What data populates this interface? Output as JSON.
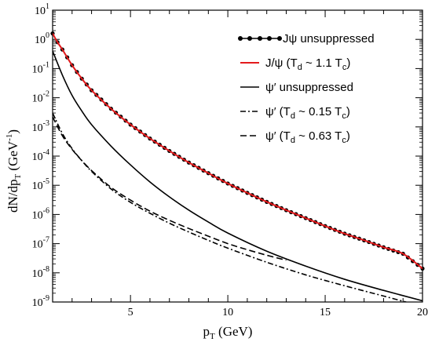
{
  "chart_data": {
    "type": "line",
    "xlabel": "p",
    "xlabel_sub": "T",
    "xlabel_unit": " (GeV)",
    "ylabel_main": "dN/dp",
    "ylabel_sub": "T",
    "ylabel_unit_pre": " (GeV",
    "ylabel_unit_sup": "-1",
    "ylabel_unit_post": ")",
    "xlim": [
      1,
      20
    ],
    "ylim_log10": [
      -9,
      1
    ],
    "y_scale": "log",
    "x_ticks": [
      5,
      10,
      15,
      20
    ],
    "y_tick_exponents": [
      1,
      0,
      -1,
      -2,
      -3,
      -4,
      -5,
      -6,
      -7,
      -8,
      -9
    ],
    "y_tick_base": "10",
    "legend_position": "top-right",
    "series": [
      {
        "name": "Jψ unsuppressed",
        "style": "line-dots",
        "color": "#000000",
        "x": [
          1.0,
          1.25,
          1.5,
          2,
          2.5,
          3,
          4,
          5,
          6,
          7,
          8,
          9,
          10,
          11,
          12,
          13,
          14,
          15,
          16,
          17,
          18,
          19,
          20
        ],
        "y": [
          1.6,
          0.8,
          0.45,
          0.13,
          0.045,
          0.018,
          0.0042,
          0.0012,
          0.0004,
          0.00015,
          6e-05,
          2.6e-05,
          1.15e-05,
          5.5e-06,
          2.7e-06,
          1.4e-06,
          7.5e-07,
          4e-07,
          2.2e-07,
          1.3e-07,
          7.5e-08,
          4.5e-08,
          1.4e-08
        ]
      },
      {
        "name": "J/ψ (T",
        "name_sub": "d",
        "name_rest": " ~ 1.1 T",
        "name_sub2": "c",
        "name_end": ")",
        "style": "solid",
        "color": "#e31a1c",
        "x": [
          1.0,
          1.25,
          1.5,
          2,
          2.5,
          3,
          4,
          5,
          6,
          7,
          8,
          9,
          10,
          11,
          12,
          13,
          14,
          15,
          16,
          17,
          18,
          19,
          20
        ],
        "y": [
          1.6,
          0.8,
          0.45,
          0.13,
          0.045,
          0.018,
          0.0042,
          0.0012,
          0.0004,
          0.00015,
          6e-05,
          2.6e-05,
          1.15e-05,
          5.5e-06,
          2.7e-06,
          1.4e-06,
          7.5e-07,
          4e-07,
          2.2e-07,
          1.3e-07,
          7.5e-08,
          4.5e-08,
          1.4e-08
        ]
      },
      {
        "name": "ψ′ unsuppressed",
        "style": "solid",
        "color": "#000000",
        "x": [
          1.0,
          1.5,
          2,
          2.5,
          3,
          4,
          5,
          6,
          7,
          8,
          9,
          10,
          12,
          14,
          16,
          18,
          20
        ],
        "y": [
          0.4,
          0.06,
          0.012,
          0.0035,
          0.0012,
          0.00022,
          5e-05,
          1.3e-05,
          4e-06,
          1.4e-06,
          5.5e-07,
          2.3e-07,
          5.5e-08,
          1.7e-08,
          6e-09,
          2.5e-09,
          1.1e-09
        ]
      },
      {
        "name": "ψ′ (T",
        "name_sub": "d",
        "name_rest": " ~ 0.15 T",
        "name_sub2": "c",
        "name_end": ")",
        "style": "dash-dot",
        "color": "#000000",
        "x": [
          1.0,
          1.5,
          2,
          2.5,
          3,
          4,
          5,
          6,
          7,
          8,
          9,
          10,
          12,
          14,
          16,
          18,
          20
        ],
        "y": [
          0.003,
          0.0006,
          0.00018,
          7e-05,
          3e-05,
          7.5e-06,
          2.6e-06,
          1.1e-06,
          5e-07,
          2.5e-07,
          1.3e-07,
          7e-08,
          2.3e-08,
          8.5e-09,
          3.6e-09,
          1.6e-09,
          7e-10
        ]
      },
      {
        "name": "ψ′ (T",
        "name_sub": "d",
        "name_rest": " ~ 0.63 T",
        "name_sub2": "c",
        "name_end": ")",
        "style": "dashed",
        "color": "#000000",
        "x": [
          1.0,
          1.5,
          2,
          2.5,
          3,
          4,
          5,
          6,
          7,
          8,
          9,
          10,
          11,
          12,
          13
        ],
        "y": [
          0.0022,
          0.0005,
          0.00017,
          7e-05,
          3.2e-05,
          8.5e-06,
          3.1e-06,
          1.3e-06,
          6.3e-07,
          3.3e-07,
          1.8e-07,
          1e-07,
          6.2e-08,
          4e-08,
          2.7e-08
        ]
      }
    ]
  }
}
